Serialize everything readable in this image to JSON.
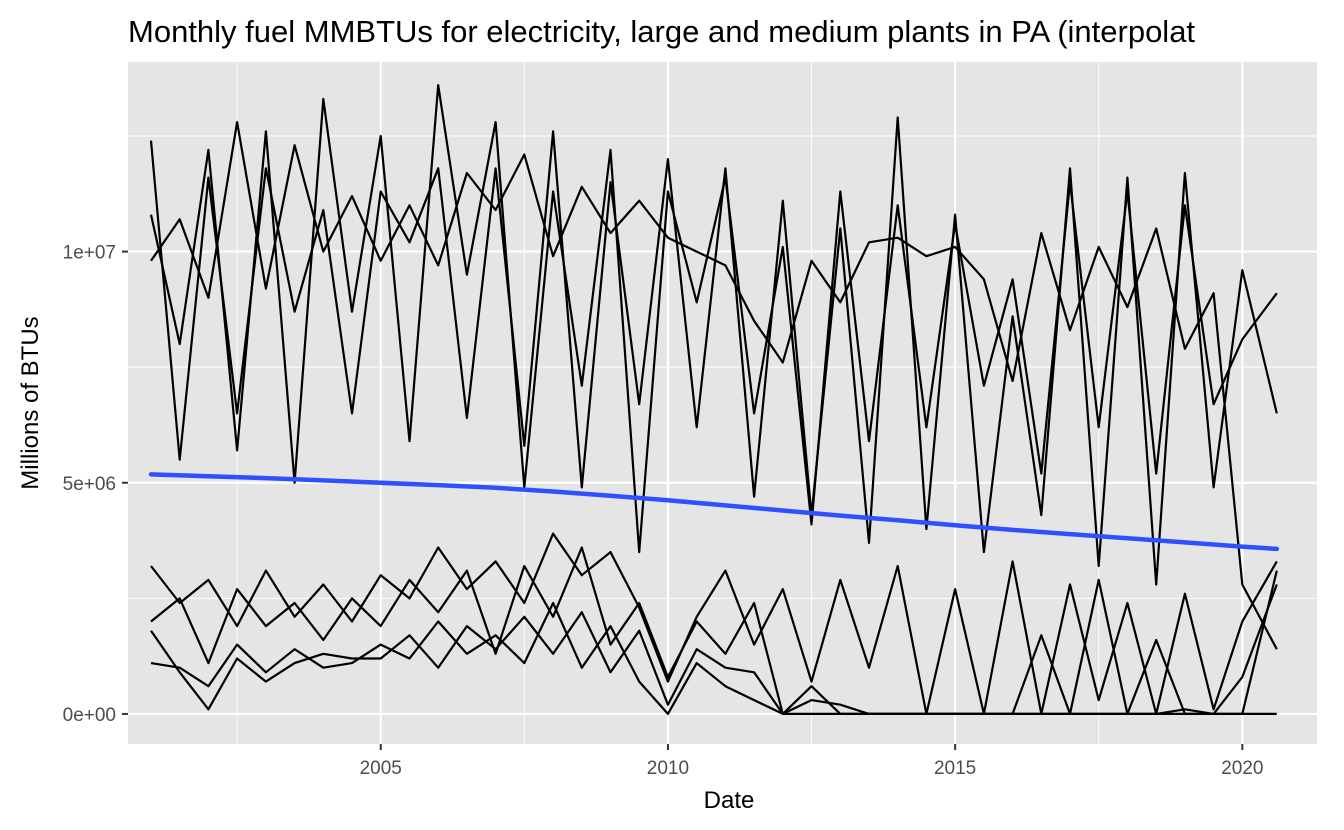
{
  "chart_data": {
    "type": "line",
    "title": "Monthly fuel MMBTUs for electricity, large and medium plants in PA (interpolat",
    "xlabel": "Date",
    "ylabel": "Millions of BTUs",
    "x_ticks": [
      2005,
      2010,
      2015,
      2020
    ],
    "x_tick_labels": [
      "2005",
      "2010",
      "2015",
      "2020"
    ],
    "y_ticks": [
      0,
      5000000,
      10000000
    ],
    "y_tick_labels": [
      "0e+00",
      "5e+06",
      "1e+07"
    ],
    "xlim": [
      2000.6,
      2021.3
    ],
    "ylim": [
      -650000,
      14100000
    ],
    "grid": true,
    "legend": "none",
    "colors": {
      "panel": "#e5e5e5",
      "grid": "#ffffff",
      "series": "#000000",
      "trend": "#3050ff",
      "tick": "#333333"
    },
    "series": [
      {
        "x": [
          2001.0,
          2001.5,
          2002.0,
          2002.5,
          2003.0,
          2003.5,
          2004.0,
          2004.5,
          2005.0,
          2005.5,
          2006.0,
          2006.5,
          2007.0,
          2007.5,
          2008.0,
          2008.5,
          2009.0,
          2009.5,
          2010.0,
          2010.5,
          2011.0,
          2011.5,
          2012.0,
          2012.5,
          2013.0,
          2013.5,
          2014.0,
          2014.5,
          2015.0,
          2015.5,
          2016.0,
          2016.5,
          2017.0,
          2017.5,
          2018.0,
          2018.5,
          2019.0,
          2019.5,
          2020.0,
          2020.6
        ],
        "values": [
          12400000,
          5500000,
          11600000,
          6500000,
          11800000,
          8700000,
          10900000,
          6500000,
          11300000,
          10200000,
          11800000,
          6400000,
          11800000,
          5800000,
          12600000,
          4900000,
          11500000,
          6700000,
          12000000,
          6200000,
          11800000,
          4700000,
          11100000,
          4300000,
          10500000,
          3700000,
          12900000,
          4000000,
          10800000,
          3500000,
          8600000,
          4300000,
          11800000,
          3200000,
          11600000,
          2800000,
          11700000,
          4900000,
          9600000,
          6500000
        ]
      },
      {
        "x": [
          2001.0,
          2001.5,
          2002.0,
          2002.5,
          2003.0,
          2003.5,
          2004.0,
          2004.5,
          2005.0,
          2005.5,
          2006.0,
          2006.5,
          2007.0,
          2007.5,
          2008.0,
          2008.5,
          2009.0,
          2009.5,
          2010.0,
          2010.5,
          2011.0,
          2011.5,
          2012.0,
          2012.5,
          2013.0,
          2013.5,
          2014.0,
          2014.5,
          2015.0,
          2015.5,
          2016.0,
          2016.5,
          2017.0,
          2017.5,
          2018.0,
          2018.5,
          2019.0,
          2019.5,
          2020.0,
          2020.6
        ],
        "values": [
          10800000,
          8000000,
          12200000,
          5700000,
          12600000,
          5000000,
          13300000,
          8700000,
          12500000,
          5900000,
          13600000,
          9500000,
          12800000,
          4900000,
          11300000,
          7100000,
          12200000,
          3500000,
          11300000,
          8900000,
          11600000,
          6500000,
          10100000,
          4100000,
          11300000,
          5900000,
          11000000,
          6200000,
          10600000,
          7100000,
          9400000,
          5200000,
          11500000,
          6200000,
          11300000,
          5200000,
          11000000,
          6700000,
          8100000,
          9100000
        ]
      },
      {
        "x": [
          2001.0,
          2001.5,
          2002.0,
          2002.5,
          2003.0,
          2003.5,
          2004.0,
          2004.5,
          2005.0,
          2005.5,
          2006.0,
          2006.5,
          2007.0,
          2007.5,
          2008.0,
          2008.5,
          2009.0,
          2009.5,
          2010.0,
          2010.5,
          2011.0,
          2011.5,
          2012.0,
          2012.5,
          2013.0,
          2013.5,
          2014.0,
          2014.5,
          2015.0,
          2015.5,
          2016.0,
          2016.5,
          2017.0,
          2017.5,
          2018.0,
          2018.5,
          2019.0,
          2019.5,
          2020.0,
          2020.6
        ],
        "values": [
          9800000,
          10700000,
          9000000,
          12800000,
          9200000,
          12300000,
          10000000,
          11200000,
          9800000,
          11000000,
          9700000,
          11700000,
          10900000,
          12100000,
          9900000,
          11400000,
          10400000,
          11100000,
          10300000,
          10000000,
          9700000,
          8500000,
          7600000,
          9800000,
          8900000,
          10200000,
          10300000,
          9900000,
          10100000,
          9400000,
          7200000,
          10400000,
          8300000,
          10100000,
          8800000,
          10500000,
          7900000,
          9100000,
          2800000,
          1400000
        ]
      },
      {
        "x": [
          2001.0,
          2001.5,
          2002.0,
          2002.5,
          2003.0,
          2003.5,
          2004.0,
          2004.5,
          2005.0,
          2005.5,
          2006.0,
          2006.5,
          2007.0,
          2007.5,
          2008.0,
          2008.5,
          2009.0,
          2009.5,
          2010.0,
          2010.5,
          2011.0,
          2011.5,
          2012.0,
          2012.5,
          2013.0,
          2013.5,
          2014.0,
          2014.5,
          2015.0,
          2015.5,
          2016.0,
          2016.5,
          2017.0,
          2017.5,
          2018.0,
          2018.5,
          2019.0,
          2019.5,
          2020.0,
          2020.6
        ],
        "values": [
          3200000,
          2400000,
          2900000,
          1900000,
          3100000,
          2100000,
          2800000,
          2000000,
          3000000,
          2500000,
          3600000,
          2700000,
          3300000,
          2400000,
          3900000,
          3000000,
          3500000,
          2300000,
          700000,
          2100000,
          3100000,
          1500000,
          2700000,
          700000,
          2900000,
          1000000,
          3200000,
          0,
          2700000,
          0,
          3300000,
          0,
          2800000,
          300000,
          2400000,
          0,
          2600000,
          100000,
          2000000,
          3300000
        ]
      },
      {
        "x": [
          2001.0,
          2001.5,
          2002.0,
          2002.5,
          2003.0,
          2003.5,
          2004.0,
          2004.5,
          2005.0,
          2005.5,
          2006.0,
          2006.5,
          2007.0,
          2007.5,
          2008.0,
          2008.5,
          2009.0,
          2009.5,
          2010.0,
          2010.5,
          2011.0,
          2011.5,
          2012.0,
          2012.5,
          2013.0,
          2013.5,
          2014.0,
          2014.5,
          2015.0,
          2015.5,
          2016.0,
          2016.5,
          2017.0,
          2017.5,
          2018.0,
          2018.5,
          2019.0,
          2019.5,
          2020.0,
          2020.6
        ],
        "values": [
          2000000,
          2500000,
          1100000,
          2700000,
          1900000,
          2400000,
          1600000,
          2500000,
          1900000,
          2900000,
          2200000,
          3100000,
          1300000,
          3200000,
          2100000,
          3600000,
          1500000,
          2400000,
          800000,
          2000000,
          1300000,
          2400000,
          0,
          600000,
          0,
          0,
          0,
          0,
          0,
          0,
          0,
          1700000,
          0,
          2900000,
          0,
          1600000,
          0,
          0,
          0,
          3100000
        ]
      },
      {
        "x": [
          2001.0,
          2001.5,
          2002.0,
          2002.5,
          2003.0,
          2003.5,
          2004.0,
          2004.5,
          2005.0,
          2005.5,
          2006.0,
          2006.5,
          2007.0,
          2007.5,
          2008.0,
          2008.5,
          2009.0,
          2009.5,
          2010.0,
          2010.5,
          2011.0,
          2011.5,
          2012.0,
          2012.5,
          2013.0,
          2013.5,
          2014.0,
          2014.5,
          2015.0,
          2015.5,
          2016.0,
          2016.5,
          2017.0,
          2017.5,
          2018.0,
          2018.5,
          2019.0,
          2019.5,
          2020.0,
          2020.6
        ],
        "values": [
          1800000,
          900000,
          100000,
          1200000,
          700000,
          1100000,
          1300000,
          1200000,
          1200000,
          1700000,
          1000000,
          1900000,
          1400000,
          2100000,
          1300000,
          2200000,
          900000,
          1800000,
          200000,
          1400000,
          1000000,
          900000,
          0,
          300000,
          200000,
          0,
          0,
          0,
          0,
          0,
          0,
          0,
          0,
          0,
          0,
          0,
          100000,
          0,
          0,
          0
        ]
      },
      {
        "x": [
          2001.0,
          2001.5,
          2002.0,
          2002.5,
          2003.0,
          2003.5,
          2004.0,
          2004.5,
          2005.0,
          2005.5,
          2006.0,
          2006.5,
          2007.0,
          2007.5,
          2008.0,
          2008.5,
          2009.0,
          2009.5,
          2010.0,
          2010.5,
          2011.0,
          2011.5,
          2012.0,
          2012.5,
          2013.0,
          2013.5,
          2014.0,
          2014.5,
          2015.0,
          2015.5,
          2016.0,
          2016.5,
          2017.0,
          2017.5,
          2018.0,
          2018.5,
          2019.0,
          2019.5,
          2020.0,
          2020.6
        ],
        "values": [
          1100000,
          1000000,
          600000,
          1500000,
          900000,
          1400000,
          1000000,
          1100000,
          1500000,
          1200000,
          2000000,
          1300000,
          1700000,
          1100000,
          2400000,
          1000000,
          1900000,
          700000,
          0,
          1100000,
          600000,
          300000,
          0,
          0,
          0,
          0,
          0,
          0,
          0,
          0,
          0,
          0,
          0,
          0,
          0,
          0,
          0,
          0,
          800000,
          2800000
        ]
      }
    ],
    "trend": {
      "x": [
        2001.0,
        2002.0,
        2003.0,
        2004.0,
        2005.0,
        2006.0,
        2007.0,
        2008.0,
        2009.0,
        2010.0,
        2011.0,
        2012.0,
        2013.0,
        2014.0,
        2015.0,
        2016.0,
        2017.0,
        2018.0,
        2019.0,
        2020.0,
        2020.6
      ],
      "values": [
        5180000,
        5140000,
        5100000,
        5050000,
        5000000,
        4950000,
        4890000,
        4810000,
        4720000,
        4620000,
        4510000,
        4400000,
        4290000,
        4190000,
        4080000,
        3980000,
        3890000,
        3800000,
        3710000,
        3620000,
        3570000
      ]
    }
  }
}
